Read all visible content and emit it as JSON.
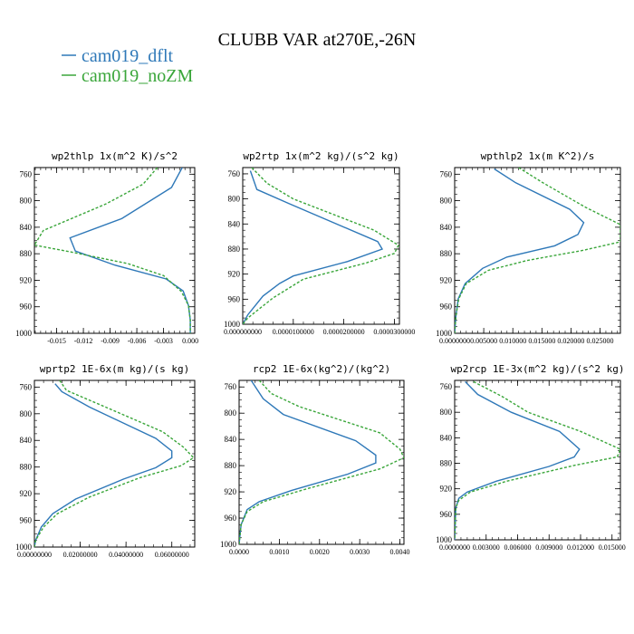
{
  "figure_title": "CLUBB VAR at270E,-26N",
  "legend": [
    {
      "label": "cam019_dflt",
      "color": "#2e78b8",
      "style": "solid"
    },
    {
      "label": "cam019_noZM",
      "color": "#3aa63a",
      "style": "dashed"
    }
  ],
  "chart_data": [
    {
      "type": "line",
      "title": "wp2thlp  1x(m^2 K)/s^2",
      "xlim": [
        -0.0175,
        0.0005
      ],
      "ylim": [
        1000,
        750
      ],
      "xticks": [
        -0.015,
        -0.012,
        -0.009,
        -0.006,
        -0.003,
        0.0
      ],
      "xtick_labels": [
        "-0.015",
        "-0.012",
        "-0.009",
        "-0.006",
        "-0.003",
        "0.000"
      ],
      "yticks": [
        760,
        800,
        840,
        880,
        920,
        960,
        1000
      ],
      "ytick_labels": [
        "760",
        "800",
        "840",
        "880",
        "920",
        "960",
        "1000"
      ],
      "series": [
        {
          "name": "cam019_dflt",
          "points": [
            [
              -0.0009,
              750
            ],
            [
              -0.0021,
              780
            ],
            [
              -0.0077,
              827
            ],
            [
              -0.0135,
              856
            ],
            [
              -0.0129,
              876
            ],
            [
              -0.0085,
              897
            ],
            [
              -0.0027,
              918
            ],
            [
              -0.0008,
              936
            ],
            [
              -0.0002,
              958
            ],
            [
              0.0,
              980
            ],
            [
              0.0,
              1000
            ]
          ]
        },
        {
          "name": "cam019_noZM",
          "points": [
            [
              -0.0037,
              750
            ],
            [
              -0.0053,
              775
            ],
            [
              -0.0095,
              805
            ],
            [
              -0.0165,
              845
            ],
            [
              -0.0175,
              867
            ],
            [
              -0.0135,
              877
            ],
            [
              -0.007,
              895
            ],
            [
              -0.003,
              913
            ],
            [
              -0.001,
              937
            ],
            [
              -0.0002,
              958
            ],
            [
              0.0,
              980
            ],
            [
              0.0,
              1000
            ]
          ]
        }
      ]
    },
    {
      "type": "line",
      "title": "wp2rtp  1x(m^2 kg)/(s^2 kg)",
      "xlim": [
        0.0,
        3.1e-05
      ],
      "ylim": [
        1000,
        750
      ],
      "xticks": [
        0.0,
        1e-05,
        2e-05,
        3e-05
      ],
      "xtick_labels": [
        "0.000000000",
        "0.0000100000",
        "0.0000200000",
        "0.0000300000"
      ],
      "yticks": [
        760,
        800,
        840,
        880,
        920,
        960,
        1000
      ],
      "ytick_labels": [
        "760",
        "800",
        "840",
        "880",
        "920",
        "960",
        "1000"
      ],
      "series": [
        {
          "name": "cam019_dflt",
          "points": [
            [
              1.5e-06,
              755
            ],
            [
              2.8e-06,
              785
            ],
            [
              9.3e-06,
              808
            ],
            [
              2.67e-05,
              868
            ],
            [
              2.76e-05,
              880
            ],
            [
              2.07e-05,
              900
            ],
            [
              1e-05,
              923
            ],
            [
              7.3e-06,
              935
            ],
            [
              4e-06,
              955
            ],
            [
              1e-06,
              985
            ],
            [
              0.0,
              1000
            ]
          ]
        },
        {
          "name": "cam019_noZM",
          "points": [
            [
              1.8e-06,
              750
            ],
            [
              4.8e-06,
              775
            ],
            [
              1e-05,
              800
            ],
            [
              2.6e-05,
              850
            ],
            [
              3.08e-05,
              874
            ],
            [
              3e-05,
              887
            ],
            [
              2.45e-05,
              902
            ],
            [
              1.2e-05,
              928
            ],
            [
              6e-06,
              958
            ],
            [
              1e-06,
              990
            ],
            [
              0.0,
              1000
            ]
          ]
        }
      ]
    },
    {
      "type": "line",
      "title": "wpthlp2  1x(m K^2)/s",
      "xlim": [
        0.0,
        0.0285
      ],
      "ylim": [
        1000,
        750
      ],
      "xticks": [
        0.0,
        0.005,
        0.01,
        0.015,
        0.02,
        0.025
      ],
      "xtick_labels": [
        "0.0000000",
        "0.005000",
        "0.010000",
        "0.015000",
        "0.020000",
        "0.025000"
      ],
      "yticks": [
        760,
        800,
        840,
        880,
        920,
        960,
        1000
      ],
      "ytick_labels": [
        "760",
        "800",
        "840",
        "880",
        "920",
        "960",
        "1000"
      ],
      "series": [
        {
          "name": "cam019_dflt",
          "points": [
            [
              0.0068,
              752
            ],
            [
              0.0105,
              773
            ],
            [
              0.0198,
              813
            ],
            [
              0.0222,
              833
            ],
            [
              0.0212,
              851
            ],
            [
              0.0172,
              868
            ],
            [
              0.009,
              885
            ],
            [
              0.0048,
              902
            ],
            [
              0.0018,
              925
            ],
            [
              0.0006,
              948
            ],
            [
              0.0002,
              975
            ],
            [
              0.0,
              1000
            ]
          ]
        },
        {
          "name": "cam019_noZM",
          "points": [
            [
              0.011,
              750
            ],
            [
              0.015,
              772
            ],
            [
              0.0225,
              810
            ],
            [
              0.0285,
              836
            ],
            [
              0.0285,
              862
            ],
            [
              0.022,
              875
            ],
            [
              0.0125,
              890
            ],
            [
              0.0058,
              905
            ],
            [
              0.002,
              925
            ],
            [
              0.0007,
              948
            ],
            [
              0.0002,
              975
            ],
            [
              0.0,
              1000
            ]
          ]
        }
      ]
    },
    {
      "type": "line",
      "title": "wprtp2  1E-6x(m kg)/(s kg)",
      "xlim": [
        0.0,
        0.07
      ],
      "ylim": [
        1000,
        750
      ],
      "xticks": [
        0.0,
        0.02,
        0.04,
        0.06
      ],
      "xtick_labels": [
        "0.00000000",
        "0.02000000",
        "0.04000000",
        "0.06000000"
      ],
      "yticks": [
        760,
        800,
        840,
        880,
        920,
        960,
        1000
      ],
      "ytick_labels": [
        "760",
        "800",
        "840",
        "880",
        "920",
        "960",
        "1000"
      ],
      "series": [
        {
          "name": "cam019_dflt",
          "points": [
            [
              0.009,
              755
            ],
            [
              0.012,
              767
            ],
            [
              0.024,
              790
            ],
            [
              0.053,
              837
            ],
            [
              0.06,
              856
            ],
            [
              0.06,
              866
            ],
            [
              0.053,
              881
            ],
            [
              0.039,
              898
            ],
            [
              0.018,
              928
            ],
            [
              0.008,
              950
            ],
            [
              0.003,
              970
            ],
            [
              0.0005,
              990
            ],
            [
              0.0,
              1000
            ]
          ]
        },
        {
          "name": "cam019_noZM",
          "points": [
            [
              0.011,
              750
            ],
            [
              0.014,
              765
            ],
            [
              0.029,
              787
            ],
            [
              0.056,
              827
            ],
            [
              0.065,
              850
            ],
            [
              0.0695,
              866
            ],
            [
              0.064,
              878
            ],
            [
              0.046,
              896
            ],
            [
              0.024,
              925
            ],
            [
              0.01,
              950
            ],
            [
              0.004,
              970
            ],
            [
              0.0005,
              990
            ],
            [
              0.0,
              1000
            ]
          ]
        }
      ]
    },
    {
      "type": "line",
      "title": "rcp2  1E-6x(kg^2)/(kg^2)",
      "xlim": [
        0.0,
        0.0041
      ],
      "ylim": [
        1000,
        750
      ],
      "xticks": [
        0.0,
        0.001,
        0.002,
        0.003,
        0.004
      ],
      "xtick_labels": [
        "0.0000",
        "0.0010",
        "0.0020",
        "0.0030",
        "0.0040"
      ],
      "yticks": [
        760,
        800,
        840,
        880,
        920,
        960,
        1000
      ],
      "ytick_labels": [
        "760",
        "800",
        "840",
        "880",
        "920",
        "960",
        "1000"
      ],
      "series": [
        {
          "name": "cam019_dflt",
          "points": [
            [
              0.0003,
              750
            ],
            [
              0.0006,
              778
            ],
            [
              0.0011,
              802
            ],
            [
              0.0029,
              842
            ],
            [
              0.0034,
              864
            ],
            [
              0.0034,
              876
            ],
            [
              0.0027,
              893
            ],
            [
              0.0013,
              918
            ],
            [
              0.0005,
              935
            ],
            [
              0.0002,
              947
            ],
            [
              5e-05,
              970
            ],
            [
              0.0,
              1000
            ]
          ]
        },
        {
          "name": "cam019_noZM",
          "points": [
            [
              0.0005,
              750
            ],
            [
              0.0008,
              770
            ],
            [
              0.0015,
              790
            ],
            [
              0.0035,
              830
            ],
            [
              0.004,
              855
            ],
            [
              0.0041,
              868
            ],
            [
              0.0035,
              885
            ],
            [
              0.0017,
              915
            ],
            [
              0.0006,
              935
            ],
            [
              0.0002,
              950
            ],
            [
              5e-05,
              970
            ],
            [
              0.0,
              1000
            ]
          ]
        }
      ]
    },
    {
      "type": "line",
      "title": "wp2rcp  1E-3x(m^2 kg)/(s^2 kg)",
      "xlim": [
        0.0,
        0.0158
      ],
      "ylim": [
        1000,
        750
      ],
      "xticks": [
        0.0,
        0.003,
        0.006,
        0.009,
        0.012,
        0.015
      ],
      "xtick_labels": [
        "0.0000000",
        "0.003000",
        "0.006000",
        "0.009000",
        "0.012000",
        "0.015000"
      ],
      "yticks": [
        760,
        800,
        840,
        880,
        920,
        960,
        1000
      ],
      "ytick_labels": [
        "760",
        "800",
        "840",
        "880",
        "920",
        "960",
        "1000"
      ],
      "series": [
        {
          "name": "cam019_dflt",
          "points": [
            [
              0.001,
              752
            ],
            [
              0.0022,
              772
            ],
            [
              0.0054,
              800
            ],
            [
              0.01,
              830
            ],
            [
              0.0119,
              858
            ],
            [
              0.0114,
              870
            ],
            [
              0.009,
              885
            ],
            [
              0.004,
              908
            ],
            [
              0.0012,
              925
            ],
            [
              0.0004,
              935
            ],
            [
              0.0001,
              950
            ],
            [
              0.0,
              1000
            ]
          ]
        },
        {
          "name": "cam019_noZM",
          "points": [
            [
              0.0018,
              752
            ],
            [
              0.0045,
              775
            ],
            [
              0.007,
              800
            ],
            [
              0.012,
              830
            ],
            [
              0.0158,
              858
            ],
            [
              0.0155,
              870
            ],
            [
              0.0115,
              883
            ],
            [
              0.005,
              908
            ],
            [
              0.0015,
              925
            ],
            [
              0.0004,
              938
            ],
            [
              0.0001,
              950
            ],
            [
              0.0,
              1000
            ]
          ]
        }
      ]
    }
  ]
}
